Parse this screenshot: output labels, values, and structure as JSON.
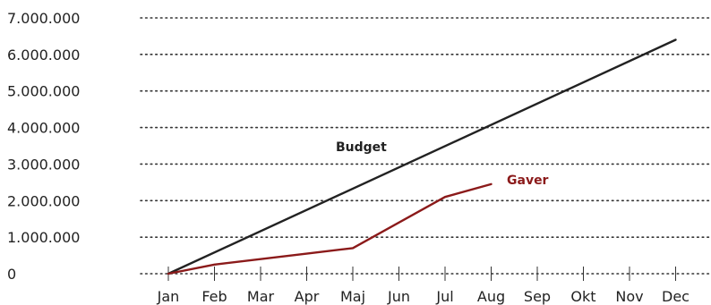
{
  "chart_data": {
    "type": "line",
    "categories": [
      "Jan",
      "Feb",
      "Mar",
      "Apr",
      "Maj",
      "Jun",
      "Jul",
      "Aug",
      "Sep",
      "Okt",
      "Nov",
      "Dec"
    ],
    "ylim": [
      0,
      7000000
    ],
    "yticks": [
      {
        "value": 0,
        "label": "0"
      },
      {
        "value": 1000000,
        "label": "1.000.000"
      },
      {
        "value": 2000000,
        "label": "2.000.000"
      },
      {
        "value": 3000000,
        "label": "3.000.000"
      },
      {
        "value": 4000000,
        "label": "4.000.000"
      },
      {
        "value": 5000000,
        "label": "5.000.000"
      },
      {
        "value": 6000000,
        "label": "6.000.000"
      },
      {
        "value": 7000000,
        "label": "7.000.000"
      }
    ],
    "grid": true,
    "series": [
      {
        "name": "Budget",
        "color": "#222222",
        "points": [
          {
            "x": "Jan",
            "y": 0
          },
          {
            "x": "Dec",
            "y": 6400000
          }
        ]
      },
      {
        "name": "Gaver",
        "color": "#8b1a1a",
        "points": [
          {
            "x": "Jan",
            "y": 0
          },
          {
            "x": "Feb",
            "y": 250000
          },
          {
            "x": "Apr",
            "y": 550000
          },
          {
            "x": "Maj",
            "y": 700000
          },
          {
            "x": "Jul",
            "y": 2100000
          },
          {
            "x": "Aug",
            "y": 2450000
          }
        ]
      }
    ]
  }
}
